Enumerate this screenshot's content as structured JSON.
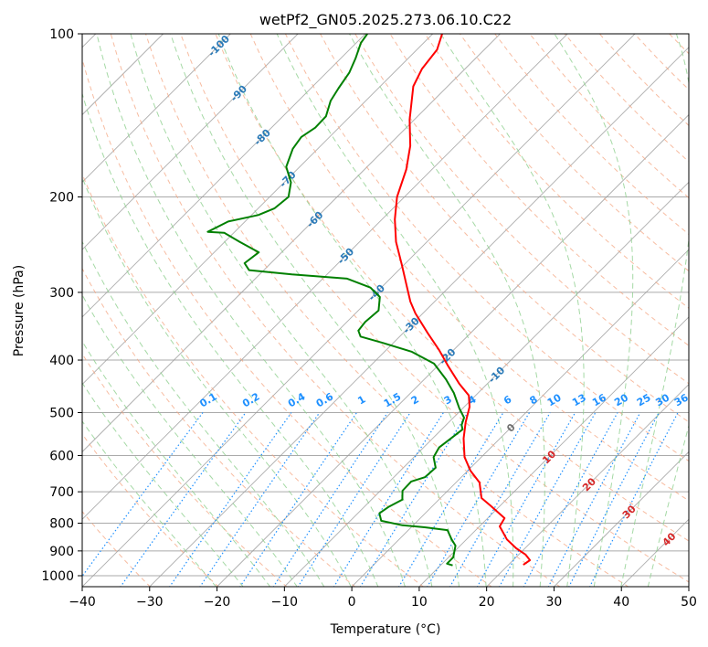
{
  "chart_data": {
    "type": "line",
    "subtype": "skew-t log-p",
    "title": "wetPf2_GN05.2025.273.06.10.C22",
    "xlabel": "Temperature (°C)",
    "ylabel": "Pressure (hPa)",
    "xlim": [
      -40,
      50
    ],
    "ylim": [
      1050,
      100
    ],
    "x_ticks": [
      "−40",
      "−30",
      "−20",
      "−10",
      "0",
      "10",
      "20",
      "30",
      "40",
      "50"
    ],
    "x_tick_values": [
      -40,
      -30,
      -20,
      -10,
      0,
      10,
      20,
      30,
      40,
      50
    ],
    "y_ticks": [
      "100",
      "200",
      "300",
      "400",
      "500",
      "600",
      "700",
      "800",
      "900",
      "1000"
    ],
    "y_tick_values": [
      100,
      200,
      300,
      400,
      500,
      600,
      700,
      800,
      900,
      1000
    ],
    "grid": true,
    "isotherm_labels": [
      "-100",
      "-90",
      "-80",
      "-70",
      "-60",
      "-50",
      "-40",
      "-30",
      "-20",
      "-10",
      "0",
      "10",
      "20",
      "30",
      "40"
    ],
    "isotherm_label_values": [
      -100,
      -90,
      -80,
      -70,
      -60,
      -50,
      -40,
      -30,
      -20,
      -10,
      0,
      10,
      20,
      30,
      40
    ],
    "mixing_ratio_labels": [
      "0.1",
      "0.2",
      "0.4",
      "0.6",
      "1",
      "1.5",
      "2",
      "3",
      "4",
      "6",
      "8",
      "10",
      "13",
      "16",
      "20",
      "25",
      "30",
      "36"
    ],
    "mixing_ratio_values": [
      0.1,
      0.2,
      0.4,
      0.6,
      1,
      1.5,
      2,
      3,
      4,
      6,
      8,
      10,
      13,
      16,
      20,
      25,
      30,
      36
    ],
    "colors": {
      "temperature": "#ff0000",
      "dewpoint": "#008000",
      "isotherm": "#999999",
      "dry_adiabat": "#f4a582",
      "moist_adiabat": "#8fcf8f",
      "mixing_ratio": "#1e90ff",
      "neg_label": "#2a7ab8",
      "pos_label": "#d62728",
      "zero_label": "#707070"
    },
    "series": [
      {
        "name": "Temperature",
        "pressure": [
          100,
          107,
          116,
          125,
          144,
          161,
          178,
          200,
          220,
          242,
          267,
          289,
          312,
          328,
          357,
          383,
          409,
          442,
          465,
          488,
          521,
          558,
          604,
          640,
          673,
          719,
          742,
          783,
          811,
          857,
          890,
          914,
          936,
          955
        ],
        "temperature": [
          -68.6,
          -67.0,
          -66.4,
          -65.1,
          -60.7,
          -56.7,
          -53.8,
          -51.1,
          -48.1,
          -44.6,
          -40.3,
          -36.9,
          -33.6,
          -31.1,
          -26.3,
          -22.2,
          -18.6,
          -14.2,
          -11.0,
          -9.2,
          -7.5,
          -5.4,
          -2.5,
          0.4,
          3.5,
          6.1,
          8.5,
          12.5,
          13.0,
          16.0,
          18.7,
          21.0,
          22.5,
          22.2
        ]
      },
      {
        "name": "Dewpoint",
        "pressure": [
          100,
          104,
          111,
          118,
          126,
          133,
          142,
          149,
          155,
          163,
          176,
          188,
          200,
          210,
          216,
          222,
          232,
          233,
          242,
          253,
          265,
          273,
          278,
          283,
          294,
          306,
          324,
          340,
          353,
          362,
          372,
          386,
          406,
          434,
          460,
          491,
          511,
          527,
          537,
          558,
          580,
          604,
          632,
          658,
          670,
          697,
          724,
          747,
          767,
          792,
          807,
          814,
          824,
          857,
          880,
          925,
          950,
          957
        ],
        "temperature": [
          -79.7,
          -79.3,
          -77.8,
          -76.6,
          -75.9,
          -75.2,
          -73.6,
          -73.5,
          -74.2,
          -73.7,
          -72.0,
          -69.0,
          -67.2,
          -67.6,
          -69.0,
          -72.5,
          -74.0,
          -71.4,
          -67.8,
          -63.4,
          -63.9,
          -62.2,
          -55.2,
          -46.4,
          -41.6,
          -38.8,
          -37.0,
          -37.3,
          -37.0,
          -35.8,
          -31.5,
          -26.0,
          -20.9,
          -16.8,
          -13.6,
          -10.5,
          -8.4,
          -7.7,
          -6.9,
          -7.3,
          -7.7,
          -7.1,
          -5.2,
          -5.4,
          -6.8,
          -6.7,
          -5.4,
          -6.4,
          -6.8,
          -5.4,
          -1.6,
          2.0,
          5.8,
          7.8,
          9.3,
          10.7,
          10.7,
          11.8
        ]
      }
    ]
  }
}
